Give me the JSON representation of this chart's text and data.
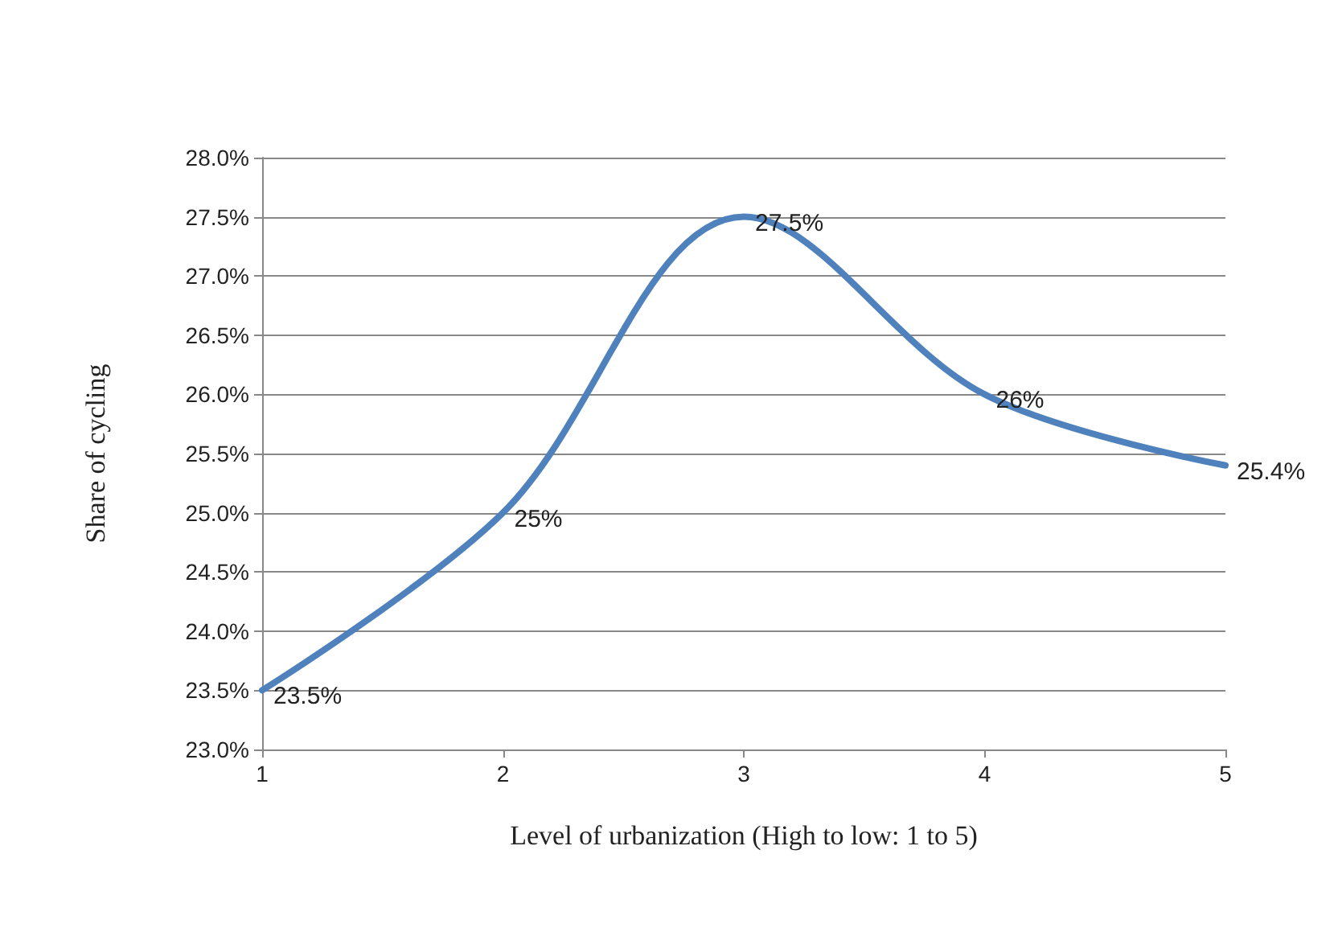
{
  "chart_data": {
    "type": "line",
    "xlabel": "Level of urbanization (High to low: 1 to 5)",
    "ylabel": "Share of cycling",
    "x": [
      1,
      2,
      3,
      4,
      5
    ],
    "series": [
      {
        "color": "#4f81bd",
        "values": [
          23.5,
          25,
          27.5,
          26,
          25.4
        ],
        "value_labels": [
          "23.5%",
          "25%",
          "27.5%",
          "26%",
          "25.4%"
        ]
      }
    ],
    "xlim": [
      1,
      5
    ],
    "xticks": [
      1,
      2,
      3,
      4,
      5
    ],
    "ylim": [
      23,
      28
    ],
    "yticks": [
      {
        "value": 23,
        "label": "23.0%"
      },
      {
        "value": 23.5,
        "label": "23.5%"
      },
      {
        "value": 24,
        "label": "24.0%"
      },
      {
        "value": 24.5,
        "label": "24.5%"
      },
      {
        "value": 25,
        "label": "25.0%"
      },
      {
        "value": 25.5,
        "label": "25.5%"
      },
      {
        "value": 26,
        "label": "26.0%"
      },
      {
        "value": 26.5,
        "label": "26.5%"
      },
      {
        "value": 27,
        "label": "27.0%"
      },
      {
        "value": 27.5,
        "label": "27.5%"
      },
      {
        "value": 28,
        "label": "28.0%"
      }
    ],
    "grid": "y",
    "marker": "none",
    "line_style": "solid"
  }
}
